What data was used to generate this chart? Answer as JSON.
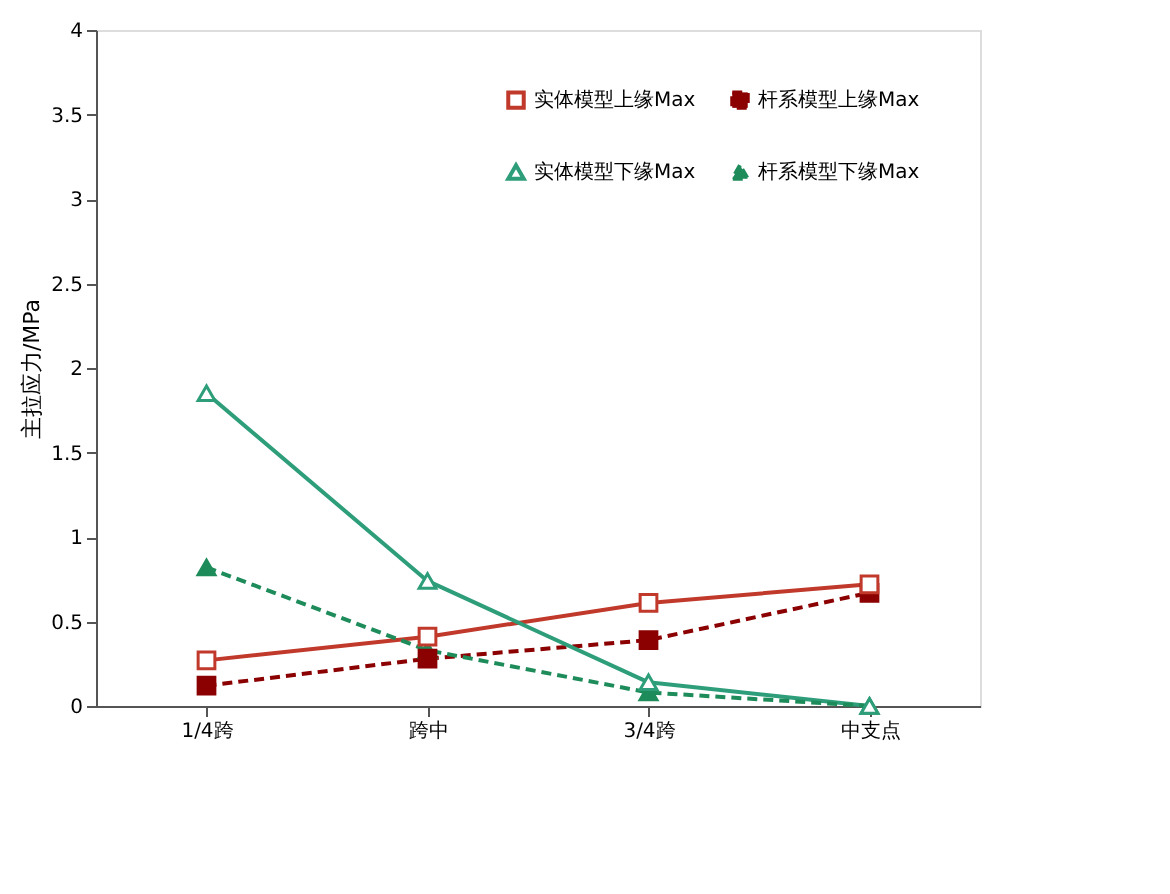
{
  "chart_data": {
    "type": "line",
    "ylabel": "主拉应力/MPa",
    "categories": [
      "1/4跨",
      "跨中",
      "3/4跨",
      "中支点"
    ],
    "ylim": [
      0,
      4
    ],
    "yticks": [
      0,
      0.5,
      1,
      1.5,
      2,
      2.5,
      3,
      3.5,
      4
    ],
    "grid": false,
    "legend": "top right",
    "series": [
      {
        "name": "实体模型上缘Max",
        "color": "#c0392b",
        "values": [
          0.27,
          0.41,
          0.61,
          0.72
        ],
        "marker": "square",
        "line_style": "solid"
      },
      {
        "name": "杆系模型上缘Max",
        "color": "#8b0000",
        "values": [
          0.12,
          0.28,
          0.39,
          0.67
        ],
        "marker": "square",
        "line_style": "dashed"
      },
      {
        "name": "实体模型下缘Max",
        "color": "#2e9e7a",
        "values": [
          1.85,
          0.74,
          0.14,
          0.0
        ],
        "marker": "triangle",
        "line_style": "solid"
      },
      {
        "name": "杆系模型下缘Max",
        "color": "#1e8c5a",
        "values": [
          0.82,
          0.33,
          0.08,
          0.0
        ],
        "marker": "triangle",
        "line_style": "dashed"
      }
    ]
  }
}
